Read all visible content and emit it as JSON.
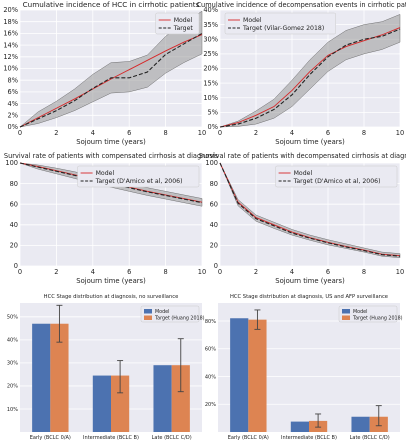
{
  "colors": {
    "model": "#d62728",
    "target": "#222222",
    "band": "#999999",
    "bar_model": "#4c72b0",
    "bar_target": "#dd8452",
    "panel_bg": "#eaeaf2",
    "grid": "#ffffff"
  },
  "chart_data": [
    {
      "type": "line",
      "title": "Cumulative incidence of HCC in cirrhotic patients",
      "xlabel": "Sojourn time (years)",
      "ylabel": "",
      "xlim": [
        0,
        10
      ],
      "ylim": [
        0,
        20
      ],
      "xticks": [
        "0",
        "2",
        "4",
        "6",
        "8",
        "10"
      ],
      "yticks": [
        "0%",
        "2%",
        "4%",
        "6%",
        "8%",
        "10%",
        "12%",
        "14%",
        "16%",
        "18%",
        "20%"
      ],
      "legend": "top-right",
      "grid": true,
      "x": [
        0,
        1,
        2,
        3,
        4,
        5,
        6,
        7,
        8,
        9,
        10
      ],
      "series": [
        {
          "name": "Model",
          "style": "solid",
          "values": [
            0,
            1.6,
            3.2,
            4.8,
            6.5,
            8.2,
            9.8,
            11.4,
            13.0,
            14.5,
            15.8
          ]
        },
        {
          "name": "Target",
          "style": "dashed",
          "values": [
            0,
            1.4,
            2.8,
            4.5,
            6.6,
            8.4,
            8.4,
            9.4,
            12.4,
            14.2,
            16.0
          ]
        }
      ],
      "band": {
        "lower": [
          0,
          0.6,
          1.6,
          2.8,
          4.3,
          5.8,
          6.0,
          6.8,
          9.2,
          11.0,
          12.5
        ],
        "upper": [
          0,
          2.6,
          4.4,
          6.5,
          9.0,
          11.0,
          11.2,
          12.3,
          15.5,
          17.8,
          19.8
        ]
      }
    },
    {
      "type": "line",
      "title": "Cumulative incidence of decompensation events in cirrhotic patients",
      "xlabel": "Sojourn time (years)",
      "ylabel": "",
      "xlim": [
        0,
        10
      ],
      "ylim": [
        0,
        40
      ],
      "xticks": [
        "0",
        "2",
        "4",
        "6",
        "8",
        "10"
      ],
      "yticks": [
        "0%",
        "5%",
        "10%",
        "15%",
        "20%",
        "25%",
        "30%",
        "35%",
        "40%"
      ],
      "legend": "top-left",
      "grid": true,
      "x": [
        0,
        1,
        2,
        3,
        4,
        5,
        6,
        7,
        8,
        9,
        10
      ],
      "series": [
        {
          "name": "Model",
          "style": "solid",
          "values": [
            0,
            1.5,
            4.0,
            7.0,
            12.5,
            19.0,
            24.5,
            27.5,
            29.5,
            31.5,
            34.0
          ]
        },
        {
          "name": "Target (Vilar-Gomez 2018)",
          "style": "dashed",
          "values": [
            0,
            1.0,
            3.0,
            6.0,
            11.0,
            18.0,
            24.0,
            28.0,
            30.0,
            31.0,
            33.5
          ]
        }
      ],
      "band": {
        "lower": [
          0,
          0.2,
          1.0,
          3.0,
          7.0,
          13.0,
          19.0,
          23.0,
          25.0,
          26.5,
          29.0
        ],
        "upper": [
          0,
          2.0,
          5.5,
          9.5,
          16.0,
          23.0,
          29.0,
          33.0,
          35.0,
          36.0,
          38.5
        ]
      }
    },
    {
      "type": "line",
      "title": "Survival rate of patients with compensated cirrhosis at diagnosis",
      "xlabel": "Sojourn time (years)",
      "ylabel": "",
      "xlim": [
        0,
        10
      ],
      "ylim": [
        0,
        100
      ],
      "xticks": [
        "0",
        "2",
        "4",
        "6",
        "8",
        "10"
      ],
      "yticks": [
        "0",
        "20",
        "40",
        "60",
        "80",
        "100"
      ],
      "legend": "top-right",
      "grid": true,
      "x": [
        0,
        1,
        2,
        3,
        4,
        5,
        6,
        7,
        8,
        9,
        10
      ],
      "series": [
        {
          "name": "Model",
          "style": "solid",
          "values": [
            100,
            96.5,
            92.5,
            88.5,
            84.5,
            80.5,
            76.5,
            72.5,
            69.0,
            65.5,
            62.0
          ]
        },
        {
          "name": "Target (D'Amico et al, 2006)",
          "style": "dashed",
          "values": [
            100,
            96.0,
            92.0,
            88.0,
            84.0,
            80.0,
            76.0,
            72.0,
            68.5,
            65.0,
            61.5
          ]
        }
      ],
      "band": {
        "lower": [
          100,
          94.0,
          89.5,
          85.0,
          80.5,
          76.5,
          72.5,
          68.5,
          65.0,
          61.5,
          58.0
        ],
        "upper": [
          100,
          98.0,
          95.0,
          91.5,
          87.5,
          84.0,
          80.0,
          76.0,
          72.5,
          69.0,
          65.5
        ]
      }
    },
    {
      "type": "line",
      "title": "Survival rate of patients with decompensated cirrhosis at diagnosis",
      "xlabel": "Sojourn time (years)",
      "ylabel": "",
      "xlim": [
        0,
        10
      ],
      "ylim": [
        0,
        100
      ],
      "xticks": [
        "0",
        "2",
        "4",
        "6",
        "8",
        "10"
      ],
      "yticks": [
        "0",
        "20",
        "40",
        "60",
        "80",
        "100"
      ],
      "legend": "top-right",
      "grid": true,
      "x": [
        0,
        1,
        2,
        3,
        4,
        5,
        6,
        7,
        8,
        9,
        10
      ],
      "series": [
        {
          "name": "Model",
          "style": "solid",
          "values": [
            100,
            62.0,
            47.0,
            40.0,
            33.0,
            27.5,
            23.0,
            19.0,
            15.5,
            11.5,
            10.0
          ]
        },
        {
          "name": "Target (D'Amico et al, 2006)",
          "style": "dashed",
          "values": [
            100,
            61.0,
            46.0,
            39.0,
            32.0,
            27.0,
            22.5,
            18.5,
            15.0,
            11.0,
            9.5
          ]
        }
      ],
      "band": {
        "lower": [
          100,
          58.5,
          43.5,
          36.5,
          30.0,
          25.0,
          20.5,
          17.0,
          13.5,
          9.5,
          8.0
        ],
        "upper": [
          100,
          64.5,
          49.5,
          42.5,
          35.5,
          30.0,
          25.5,
          21.5,
          17.5,
          13.5,
          12.0
        ]
      }
    },
    {
      "type": "bar",
      "title": "HCC Stage distribution at diagnosis, no surveillance",
      "xlabel": "",
      "ylabel": "",
      "ylim": [
        0,
        56
      ],
      "yticks": [
        "10%",
        "20%",
        "30%",
        "40%",
        "50%"
      ],
      "categories": [
        "Early (BCLC 0/A)",
        "Intermediate (BCLC B)",
        "Late (BCLC C/D)"
      ],
      "legend": "top-right",
      "grid": true,
      "series": [
        {
          "name": "Model",
          "values": [
            47,
            24.5,
            29
          ]
        },
        {
          "name": "Target (Huang 2018)",
          "values": [
            47,
            24.5,
            29
          ],
          "err_low": [
            39,
            17,
            17.5
          ],
          "err_high": [
            55,
            31,
            40.5
          ]
        }
      ]
    },
    {
      "type": "bar",
      "title": "HCC Stage distribution at diagnosis, US and AFP surveillance",
      "xlabel": "",
      "ylabel": "",
      "ylim": [
        0,
        93
      ],
      "yticks": [
        "20%",
        "40%",
        "60%",
        "80%"
      ],
      "categories": [
        "Early (BCLC 0/A)",
        "Intermediate (BCLC B)",
        "Late (BCLC C/D)"
      ],
      "legend": "top-right",
      "grid": true,
      "series": [
        {
          "name": "Model",
          "values": [
            82,
            7.5,
            11
          ]
        },
        {
          "name": "Target (Huang 2018)",
          "values": [
            81,
            8,
            11
          ],
          "err_low": [
            74,
            3.5,
            4.5
          ],
          "err_high": [
            88,
            13,
            19
          ]
        }
      ]
    }
  ]
}
